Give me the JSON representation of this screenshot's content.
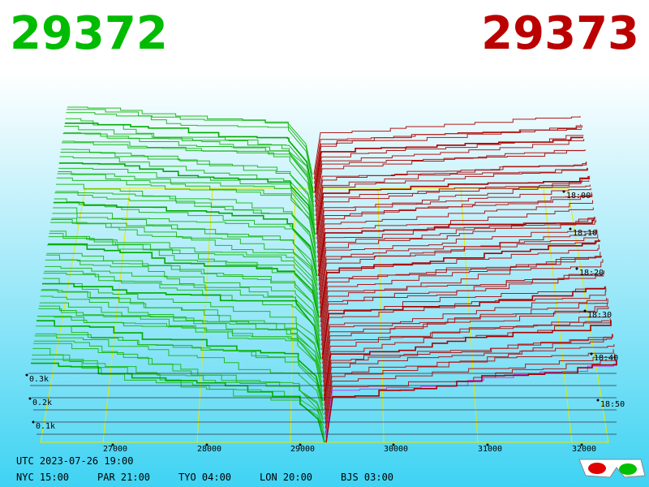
{
  "header": {
    "bid_price": "29372",
    "ask_price": "29373"
  },
  "price_axis": {
    "labels": [
      "27000",
      "28000",
      "29000",
      "30000",
      "31000",
      "32000"
    ]
  },
  "time_axis": {
    "labels": [
      "18:00",
      "18:10",
      "18:20",
      "18:30",
      "18:40",
      "18:50"
    ]
  },
  "depth_axis": {
    "labels": [
      "0.3k",
      "0.2k",
      "0.1k"
    ]
  },
  "footer": {
    "timestamp": "UTC 2023-07-26 19:00",
    "clocks": [
      "NYC 15:00",
      "PAR 21:00",
      "TYO 04:00",
      "LON 20:00",
      "BJS 03:00"
    ]
  }
}
